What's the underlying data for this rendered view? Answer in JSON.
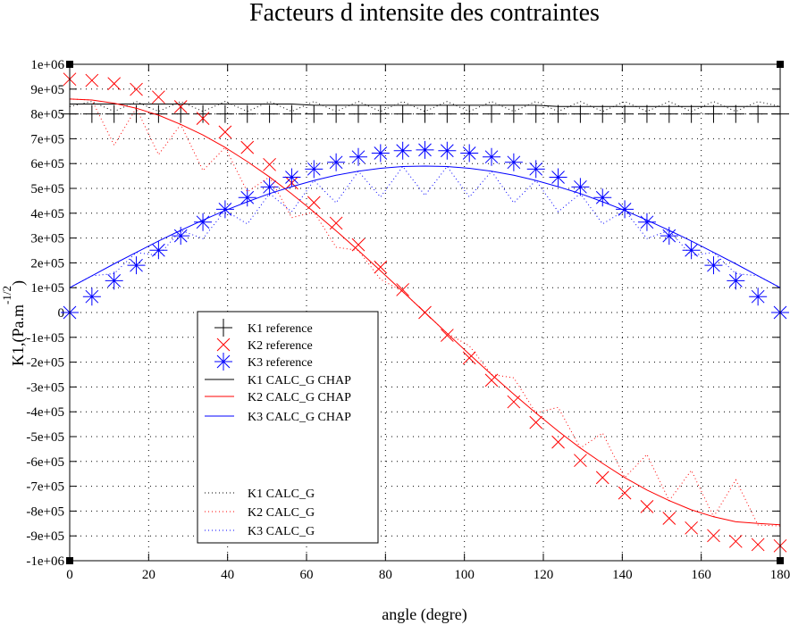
{
  "chart_data": {
    "type": "line",
    "title": "Facteurs d intensite des contraintes",
    "xlabel": "angle (degre)",
    "ylabel": {
      "main": "K1,(Pa.m",
      "superscript": "-1/2",
      "close": ")"
    },
    "xlim": [
      0,
      180
    ],
    "ylim": [
      -1000000,
      1000000
    ],
    "grid": true,
    "legend_position": "center-left",
    "x_ticks": [
      0,
      20,
      40,
      60,
      80,
      100,
      120,
      140,
      160,
      180
    ],
    "x_tick_labels": [
      "0",
      "20",
      "40",
      "60",
      "80",
      "100",
      "120",
      "140",
      "160",
      "180"
    ],
    "y_ticks": [
      1000000,
      900000,
      800000,
      700000,
      600000,
      500000,
      400000,
      300000,
      200000,
      100000,
      0,
      -100000,
      -200000,
      -300000,
      -400000,
      -500000,
      -600000,
      -700000,
      -800000,
      -900000,
      -1000000
    ],
    "y_tick_labels": [
      "1e+06",
      "9e+05",
      "8e+05",
      "7e+05",
      "6e+05",
      "5e+05",
      "4e+05",
      "3e+05",
      "2e+05",
      "1e+05",
      "0",
      "-1e+05",
      "-2e+05",
      "-3e+05",
      "-4e+05",
      "-5e+05",
      "-6e+05",
      "-7e+05",
      "-8e+05",
      "-9e+05",
      "-1e+06"
    ],
    "x": [
      0,
      5.625,
      11.25,
      16.875,
      22.5,
      28.125,
      33.75,
      39.375,
      45,
      50.625,
      56.25,
      61.875,
      67.5,
      73.125,
      78.75,
      84.375,
      90,
      95.625,
      101.25,
      106.875,
      112.5,
      118.125,
      123.75,
      129.375,
      135,
      140.625,
      146.25,
      151.875,
      157.5,
      163.125,
      168.75,
      174.375,
      180
    ],
    "series": [
      {
        "name": "K1 reference",
        "color": "#000000",
        "style": "marker",
        "marker": "plus",
        "values": [
          800000,
          800000,
          800000,
          800000,
          800000,
          800000,
          800000,
          800000,
          800000,
          800000,
          800000,
          800000,
          800000,
          800000,
          800000,
          800000,
          800000,
          800000,
          800000,
          800000,
          800000,
          800000,
          800000,
          800000,
          800000,
          800000,
          800000,
          800000,
          800000,
          800000,
          800000,
          800000,
          800000
        ]
      },
      {
        "name": "K2 reference",
        "color": "#ff0000",
        "style": "marker",
        "marker": "cross",
        "values": [
          940000,
          935000,
          922000,
          899000,
          868000,
          829000,
          782000,
          727000,
          665000,
          596000,
          522000,
          443000,
          360000,
          273000,
          183000,
          92000,
          0,
          -92000,
          -183000,
          -273000,
          -360000,
          -443000,
          -522000,
          -596000,
          -665000,
          -727000,
          -782000,
          -829000,
          -868000,
          -899000,
          -922000,
          -935000,
          -940000
        ]
      },
      {
        "name": "K3 reference",
        "color": "#0000ff",
        "style": "marker",
        "marker": "star",
        "values": [
          0,
          64000,
          128000,
          190000,
          251000,
          309000,
          364000,
          416000,
          463000,
          506000,
          545000,
          578000,
          605000,
          627000,
          642000,
          652000,
          655000,
          652000,
          642000,
          627000,
          605000,
          578000,
          545000,
          506000,
          463000,
          416000,
          364000,
          309000,
          251000,
          190000,
          128000,
          64000,
          0
        ]
      },
      {
        "name": "K1 CALC_G CHAP",
        "color": "#000000",
        "style": "solid",
        "values": [
          840000,
          840000,
          840000,
          840000,
          840000,
          840000,
          840000,
          840000,
          840000,
          840000,
          840000,
          835000,
          835000,
          835000,
          835000,
          835000,
          835000,
          835000,
          835000,
          835000,
          835000,
          835000,
          830000,
          830000,
          830000,
          830000,
          830000,
          830000,
          830000,
          830000,
          830000,
          830000,
          830000
        ]
      },
      {
        "name": "K2 CALC_G CHAP",
        "color": "#ff0000",
        "style": "solid",
        "values": [
          860000,
          856000,
          843000,
          823000,
          795000,
          758000,
          715000,
          665000,
          608000,
          546000,
          478000,
          405000,
          329000,
          250000,
          168000,
          84000,
          0,
          -84000,
          -168000,
          -250000,
          -329000,
          -405000,
          -478000,
          -546000,
          -608000,
          -665000,
          -715000,
          -758000,
          -795000,
          -823000,
          -843000,
          -850000,
          -855000
        ]
      },
      {
        "name": "K3 CALC_G CHAP",
        "color": "#0000ff",
        "style": "solid",
        "values": [
          100000,
          148000,
          196000,
          242000,
          288000,
          331000,
          372000,
          411000,
          446000,
          479000,
          507000,
          532000,
          553000,
          569000,
          581000,
          588000,
          590000,
          588000,
          581000,
          569000,
          553000,
          532000,
          507000,
          479000,
          446000,
          411000,
          372000,
          331000,
          288000,
          242000,
          196000,
          148000,
          100000
        ]
      },
      {
        "name": "K1 CALC_G",
        "color": "#000000",
        "style": "dotted",
        "values": [
          830000,
          850000,
          810000,
          850000,
          810000,
          850000,
          810000,
          850000,
          810000,
          850000,
          810000,
          850000,
          810000,
          850000,
          810000,
          850000,
          810000,
          850000,
          810000,
          850000,
          810000,
          850000,
          810000,
          850000,
          810000,
          850000,
          810000,
          850000,
          810000,
          850000,
          810000,
          850000,
          830000
        ]
      },
      {
        "name": "K2 CALC_G",
        "color": "#ff0000",
        "style": "dotted",
        "values": [
          860000,
          856000,
          674000,
          823000,
          636000,
          758000,
          572000,
          665000,
          486000,
          546000,
          382000,
          405000,
          263000,
          250000,
          134000,
          84000,
          0,
          -84000,
          -134000,
          -250000,
          -263000,
          -405000,
          -382000,
          -546000,
          -486000,
          -665000,
          -572000,
          -758000,
          -636000,
          -823000,
          -674000,
          -856000,
          -860000
        ]
      },
      {
        "name": "K3 CALC_G",
        "color": "#0000ff",
        "style": "dotted",
        "values": [
          100000,
          148000,
          157000,
          242000,
          230000,
          331000,
          298000,
          411000,
          357000,
          479000,
          406000,
          532000,
          442000,
          569000,
          465000,
          588000,
          472000,
          588000,
          465000,
          569000,
          442000,
          532000,
          406000,
          479000,
          357000,
          411000,
          298000,
          331000,
          230000,
          242000,
          157000,
          148000,
          100000
        ]
      }
    ]
  }
}
